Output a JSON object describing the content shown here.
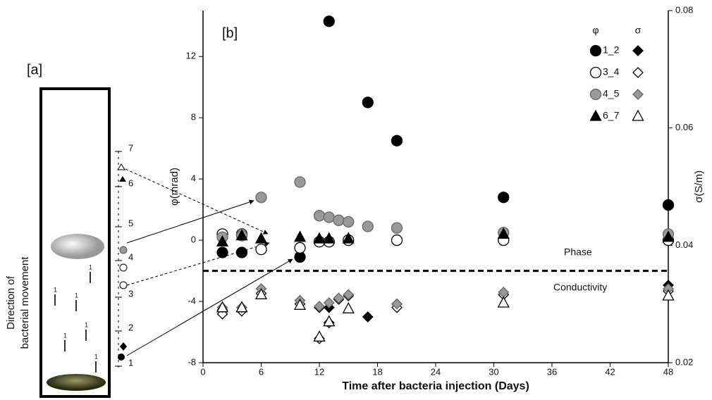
{
  "panel_a": {
    "label": "[a]",
    "axis_label": [
      "Direction of",
      "bacterial movement"
    ],
    "electrode_labels": [
      "1",
      "2",
      "3",
      "4",
      "5",
      "6",
      "7"
    ],
    "bacteria_labels": [
      "1",
      "1",
      "1",
      "1",
      "1",
      "1"
    ]
  },
  "chart_data": {
    "type": "scatter",
    "panel_label": "[b]",
    "x_label": "Time after bacteria injection (Days)",
    "y_label": "φ(mrad)",
    "y2_label": "σ(S/m)",
    "xlim": [
      0,
      48
    ],
    "xticks": [
      0,
      6,
      12,
      18,
      24,
      30,
      36,
      42,
      48
    ],
    "ylim": [
      -8,
      15
    ],
    "yticks": [
      -8,
      -4,
      0,
      4,
      8,
      12
    ],
    "y2lim": [
      0.02,
      0.08
    ],
    "y2ticks": [
      0.02,
      0.04,
      0.06,
      0.08
    ],
    "divider": {
      "value": -2,
      "upper_label": "Phase",
      "lower_label": "Conductivity"
    },
    "legend_headers": [
      "φ",
      "σ"
    ],
    "legend_position": "upper right",
    "x": [
      2,
      4,
      6,
      10,
      12,
      13,
      14,
      15,
      17,
      20,
      31,
      48
    ],
    "series": [
      {
        "name": "1_2",
        "phi": {
          "marker": "circle",
          "color": "#000000",
          "values": [
            -0.8,
            -0.8,
            null,
            -1.1,
            null,
            14.3,
            null,
            null,
            9.0,
            6.5,
            2.8,
            2.3
          ]
        },
        "sigma": {
          "marker": "diamond",
          "color": "#000000",
          "axis": "y2",
          "values": [
            0.029,
            0.0294,
            null,
            null,
            0.0294,
            0.0294,
            null,
            null,
            0.0278,
            0.03,
            0.0316,
            0.0332
          ]
        }
      },
      {
        "name": "3_4",
        "phi": {
          "marker": "circle",
          "color": "#ffffff",
          "values": [
            0.4,
            0.4,
            -0.6,
            -0.5,
            -0.1,
            -0.1,
            null,
            0.0,
            null,
            0.0,
            0.0,
            0.0
          ]
        },
        "sigma": {
          "marker": "diamond",
          "color": "#ffffff",
          "axis": "y2",
          "values": [
            0.0283,
            0.0288,
            0.0318,
            0.03,
            0.0241,
            0.0268,
            0.0308,
            0.0314,
            null,
            0.0294,
            0.0316,
            0.0322
          ]
        }
      },
      {
        "name": "4_5",
        "phi": {
          "marker": "circle",
          "color": "#999999",
          "values": [
            0.2,
            0.3,
            2.8,
            3.8,
            1.6,
            1.5,
            1.3,
            1.2,
            0.9,
            0.8,
            0.5,
            0.4
          ]
        },
        "sigma": {
          "marker": "diamond",
          "color": "#999999",
          "axis": "y2",
          "values": [
            0.0294,
            0.0294,
            0.0326,
            0.0306,
            0.0296,
            0.0302,
            0.031,
            0.0316,
            null,
            0.03,
            0.032,
            0.0326
          ]
        }
      },
      {
        "name": "6_7",
        "phi": {
          "marker": "triangle",
          "color": "#000000",
          "values": [
            -0.1,
            0.3,
            0.1,
            0.2,
            0.1,
            0.1,
            null,
            0.1,
            null,
            null,
            0.4,
            0.2
          ]
        },
        "sigma": {
          "marker": "triangle",
          "color": "#ffffff",
          "axis": "y2",
          "values": [
            0.0294,
            0.0294,
            0.0316,
            0.0298,
            0.0244,
            0.027,
            null,
            0.0292,
            null,
            null,
            0.0302,
            0.0314
          ]
        }
      }
    ]
  }
}
